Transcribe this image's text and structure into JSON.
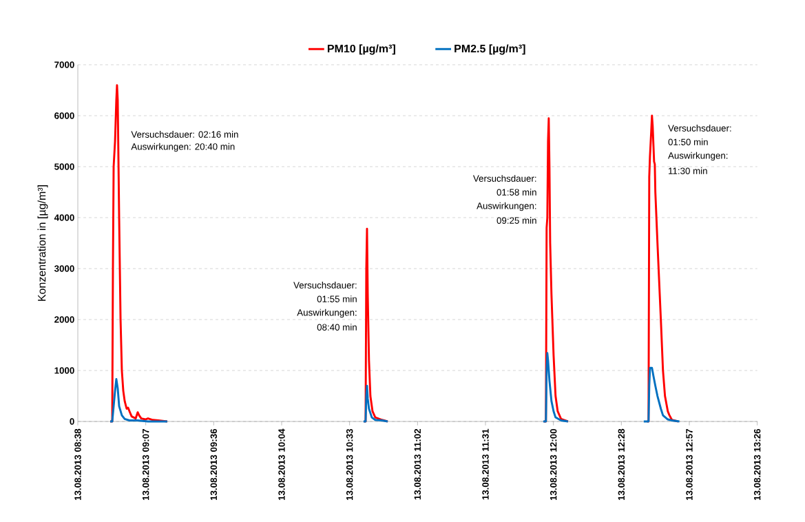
{
  "chart_data": {
    "type": "line",
    "ylabel": "Konzentration in [µg/m³]",
    "xlim": [
      "2013-08-13T08:38:24",
      "2013-08-13T13:26:24"
    ],
    "ylim": [
      0,
      7000
    ],
    "xticks": [
      {
        "value": "2013-08-13T08:38:24",
        "label": "13.08.2013 08:38"
      },
      {
        "value": "2013-08-13T09:07:12",
        "label": "13.08.2013 09:07"
      },
      {
        "value": "2013-08-13T09:36:00",
        "label": "13.08.2013 09:36"
      },
      {
        "value": "2013-08-13T10:04:48",
        "label": "13.08.2013 10:04"
      },
      {
        "value": "2013-08-13T10:33:36",
        "label": "13.08.2013 10:33"
      },
      {
        "value": "2013-08-13T11:02:24",
        "label": "13.08.2013 11:02"
      },
      {
        "value": "2013-08-13T11:31:12",
        "label": "13.08.2013 11:31"
      },
      {
        "value": "2013-08-13T12:00:00",
        "label": "13.08.2013 12:00"
      },
      {
        "value": "2013-08-13T12:28:48",
        "label": "13.08.2013 12:28"
      },
      {
        "value": "2013-08-13T12:57:36",
        "label": "13.08.2013 12:57"
      },
      {
        "value": "2013-08-13T13:26:24",
        "label": "13.08.2013 13:26"
      }
    ],
    "yticks": [
      0,
      1000,
      2000,
      3000,
      4000,
      5000,
      6000,
      7000
    ],
    "grid": "y",
    "legend": "top",
    "marker": "none",
    "line_style": "solid",
    "series": [
      {
        "name": "PM10 [µg/m³]",
        "color": "#ff0000",
        "x": [
          "2013-08-13T08:52:08",
          "2013-08-13T08:52:59",
          "2013-08-13T08:53:17",
          "2013-08-13T08:53:35",
          "2013-08-13T08:54:11",
          "2013-08-13T08:54:43",
          "2013-08-13T08:55:01",
          "2013-08-13T08:55:19",
          "2013-08-13T08:55:55",
          "2013-08-13T08:56:31",
          "2013-08-13T08:57:04",
          "2013-08-13T08:57:40",
          "2013-08-13T08:58:16",
          "2013-08-13T08:59:06",
          "2013-08-13T08:59:42",
          "2013-08-13T09:00:18",
          "2013-08-13T09:01:12",
          "2013-08-13T09:02:02",
          "2013-08-13T09:02:56",
          "2013-08-13T09:03:47",
          "2013-08-13T09:04:23",
          "2013-08-13T09:05:17",
          "2013-08-13T09:07:01",
          "2013-08-13T09:08:10",
          "2013-08-13T09:10:12",
          "2013-08-13T09:12:32",
          "2013-08-13T09:14:24",
          "2013-08-13T09:16:19",
          "2013-08-13T09:30:00",
          "2013-08-13T10:39:47",
          "2013-08-13T10:40:23",
          "2013-08-13T10:40:41",
          "2013-08-13T10:40:59",
          "2013-08-13T10:41:17",
          "2013-08-13T10:41:49",
          "2013-08-13T10:42:25",
          "2013-08-13T10:43:19",
          "2013-08-13T10:44:28",
          "2013-08-13T10:47:24",
          "2013-08-13T10:49:44",
          "2013-08-13T11:30:00",
          "2013-08-13T11:55:59",
          "2013-08-13T11:56:49",
          "2013-08-13T11:57:07",
          "2013-08-13T11:57:25",
          "2013-08-13T11:57:43",
          "2013-08-13T11:58:01",
          "2013-08-13T11:58:19",
          "2013-08-13T11:58:37",
          "2013-08-13T11:59:10",
          "2013-08-13T12:00:04",
          "2013-08-13T12:00:54",
          "2013-08-13T12:01:48",
          "2013-08-13T12:03:14",
          "2013-08-13T12:06:11",
          "2013-08-13T12:24:00",
          "2013-08-13T12:39:43",
          "2013-08-13T12:40:19",
          "2013-08-13T12:40:37",
          "2013-08-13T12:40:55",
          "2013-08-13T12:41:28",
          "2013-08-13T12:41:46",
          "2013-08-13T12:42:04",
          "2013-08-13T12:42:40",
          "2013-08-13T12:42:58",
          "2013-08-13T12:43:12",
          "2013-08-13T12:44:06",
          "2013-08-13T12:45:32",
          "2013-08-13T12:46:26",
          "2013-08-13T12:47:17",
          "2013-08-13T12:48:29",
          "2013-08-13T12:49:05",
          "2013-08-13T12:50:13",
          "2013-08-13T12:52:52"
        ],
        "values": [
          0,
          0,
          3000,
          5000,
          5500,
          6300,
          6600,
          6300,
          4000,
          2000,
          1000,
          600,
          400,
          250,
          270,
          200,
          100,
          80,
          60,
          180,
          120,
          60,
          40,
          60,
          30,
          20,
          10,
          0,
          null,
          0,
          0,
          3000,
          3780,
          2500,
          1200,
          500,
          200,
          80,
          30,
          0,
          null,
          0,
          0,
          3800,
          4000,
          5500,
          5950,
          5000,
          3500,
          2500,
          1300,
          500,
          200,
          50,
          0,
          null,
          0,
          0,
          4800,
          5200,
          5700,
          6000,
          5800,
          5100,
          5050,
          4500,
          3500,
          2000,
          1000,
          500,
          200,
          130,
          30,
          0
        ]
      },
      {
        "name": "PM2.5 [µg/m³]",
        "color": "#0070c0",
        "x": [
          "2013-08-13T08:52:08",
          "2013-08-13T08:52:59",
          "2013-08-13T08:53:35",
          "2013-08-13T08:54:11",
          "2013-08-13T08:54:43",
          "2013-08-13T08:55:19",
          "2013-08-13T08:55:55",
          "2013-08-13T08:57:04",
          "2013-08-13T08:58:16",
          "2013-08-13T09:00:18",
          "2013-08-13T09:03:47",
          "2013-08-13T09:08:10",
          "2013-08-13T09:16:19",
          "2013-08-13T09:30:00",
          "2013-08-13T10:39:29",
          "2013-08-13T10:40:23",
          "2013-08-13T10:40:41",
          "2013-08-13T10:40:59",
          "2013-08-13T10:41:17",
          "2013-08-13T10:41:49",
          "2013-08-13T10:43:01",
          "2013-08-13T10:44:28",
          "2013-08-13T10:47:24",
          "2013-08-13T10:49:44",
          "2013-08-13T11:30:00",
          "2013-08-13T11:55:41",
          "2013-08-13T11:56:49",
          "2013-08-13T11:57:07",
          "2013-08-13T11:57:25",
          "2013-08-13T11:57:43",
          "2013-08-13T11:58:19",
          "2013-08-13T11:59:10",
          "2013-08-13T12:00:04",
          "2013-08-13T12:00:54",
          "2013-08-13T12:03:14",
          "2013-08-13T12:06:11",
          "2013-08-13T12:24:00",
          "2013-08-13T12:38:17",
          "2013-08-13T12:40:19",
          "2013-08-13T12:40:37",
          "2013-08-13T12:40:55",
          "2013-08-13T12:41:46",
          "2013-08-13T12:42:22",
          "2013-08-13T12:43:12",
          "2013-08-13T12:44:06",
          "2013-08-13T12:45:32",
          "2013-08-13T12:46:26",
          "2013-08-13T12:48:29",
          "2013-08-13T12:50:13",
          "2013-08-13T12:53:24"
        ],
        "values": [
          0,
          0,
          300,
          600,
          830,
          650,
          300,
          120,
          50,
          20,
          20,
          0,
          0,
          null,
          0,
          0,
          500,
          700,
          450,
          250,
          80,
          30,
          20,
          0,
          null,
          0,
          0,
          1000,
          1340,
          1200,
          800,
          400,
          200,
          80,
          20,
          0,
          null,
          0,
          0,
          700,
          1050,
          1050,
          900,
          700,
          500,
          250,
          120,
          40,
          20,
          0
        ]
      }
    ],
    "annotations": [
      "Versuchsdauer: 02:16 min",
      "Auswirkungen: 20:40 min",
      "Versuchsdauer:",
      "01:55 min",
      "Auswirkungen:",
      "08:40 min",
      "Versuchsdauer:",
      "01:58 min",
      "Auswirkungen:",
      "09:25 min",
      "Versuchsdauer:",
      "01:50 min",
      "Auswirkungen:",
      "11:30 min"
    ]
  }
}
